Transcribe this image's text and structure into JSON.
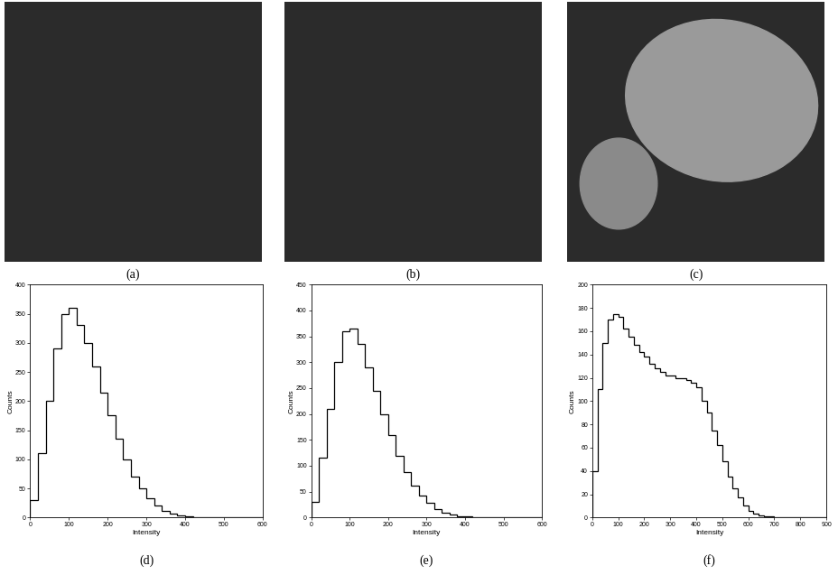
{
  "images": [
    {
      "caption": "(a)"
    },
    {
      "caption": "(b)"
    },
    {
      "caption": "(c)"
    }
  ],
  "chart_data": [
    {
      "type": "histogram",
      "caption": "(d)",
      "x_label": "Intensity",
      "y_label": "Counts",
      "color": "#000000",
      "bins": [
        0,
        20,
        40,
        60,
        80,
        100,
        120,
        140,
        160,
        180,
        200,
        220,
        240,
        260,
        280,
        300,
        320,
        340,
        360,
        380,
        400,
        420,
        440,
        460,
        480,
        500,
        520,
        540,
        560,
        580,
        600
      ],
      "counts": [
        30,
        110,
        200,
        290,
        350,
        360,
        330,
        300,
        260,
        215,
        175,
        135,
        100,
        70,
        50,
        33,
        20,
        12,
        7,
        4,
        2,
        1,
        1,
        0,
        0,
        0,
        0,
        0,
        0,
        0
      ],
      "xlim": [
        0,
        600
      ],
      "xticks": [
        0,
        100,
        200,
        300,
        400,
        500,
        600
      ],
      "ylim": [
        0,
        400
      ],
      "yticks": [
        0,
        50,
        100,
        150,
        200,
        250,
        300,
        350,
        400
      ]
    },
    {
      "type": "histogram",
      "caption": "(e)",
      "x_label": "Intensity",
      "y_label": "Counts",
      "color": "#000000",
      "bins": [
        0,
        20,
        40,
        60,
        80,
        100,
        120,
        140,
        160,
        180,
        200,
        220,
        240,
        260,
        280,
        300,
        320,
        340,
        360,
        380,
        400,
        420,
        440,
        460,
        480,
        500,
        520,
        540,
        560,
        580,
        600
      ],
      "counts": [
        30,
        115,
        210,
        300,
        360,
        365,
        335,
        290,
        245,
        200,
        160,
        120,
        88,
        62,
        42,
        28,
        17,
        10,
        6,
        3,
        2,
        1,
        1,
        0,
        0,
        0,
        0,
        0,
        0,
        0
      ],
      "xlim": [
        0,
        600
      ],
      "xticks": [
        0,
        100,
        200,
        300,
        400,
        500,
        600
      ],
      "ylim": [
        0,
        450
      ],
      "yticks": [
        0,
        50,
        100,
        150,
        200,
        250,
        300,
        350,
        400,
        450
      ]
    },
    {
      "type": "histogram",
      "caption": "(f)",
      "x_label": "Intensity",
      "y_label": "Counts",
      "color": "#000000",
      "bins": [
        0,
        20,
        40,
        60,
        80,
        100,
        120,
        140,
        160,
        180,
        200,
        220,
        240,
        260,
        280,
        300,
        320,
        340,
        360,
        380,
        400,
        420,
        440,
        460,
        480,
        500,
        520,
        540,
        560,
        580,
        600,
        620,
        640,
        660,
        680,
        700,
        720,
        740,
        760,
        780,
        800,
        820,
        840,
        860,
        880,
        900
      ],
      "counts": [
        40,
        110,
        150,
        170,
        175,
        172,
        162,
        155,
        148,
        142,
        138,
        132,
        128,
        125,
        122,
        122,
        120,
        120,
        118,
        116,
        112,
        100,
        90,
        75,
        62,
        48,
        35,
        25,
        17,
        10,
        6,
        3,
        2,
        1,
        1,
        0,
        0,
        0,
        0,
        0,
        0,
        0,
        0,
        0,
        0
      ],
      "xlim": [
        0,
        900
      ],
      "xticks": [
        0,
        100,
        200,
        300,
        400,
        500,
        600,
        700,
        800,
        900
      ],
      "ylim": [
        0,
        200
      ],
      "yticks": [
        0,
        20,
        40,
        60,
        80,
        100,
        120,
        140,
        160,
        180,
        200
      ]
    }
  ]
}
